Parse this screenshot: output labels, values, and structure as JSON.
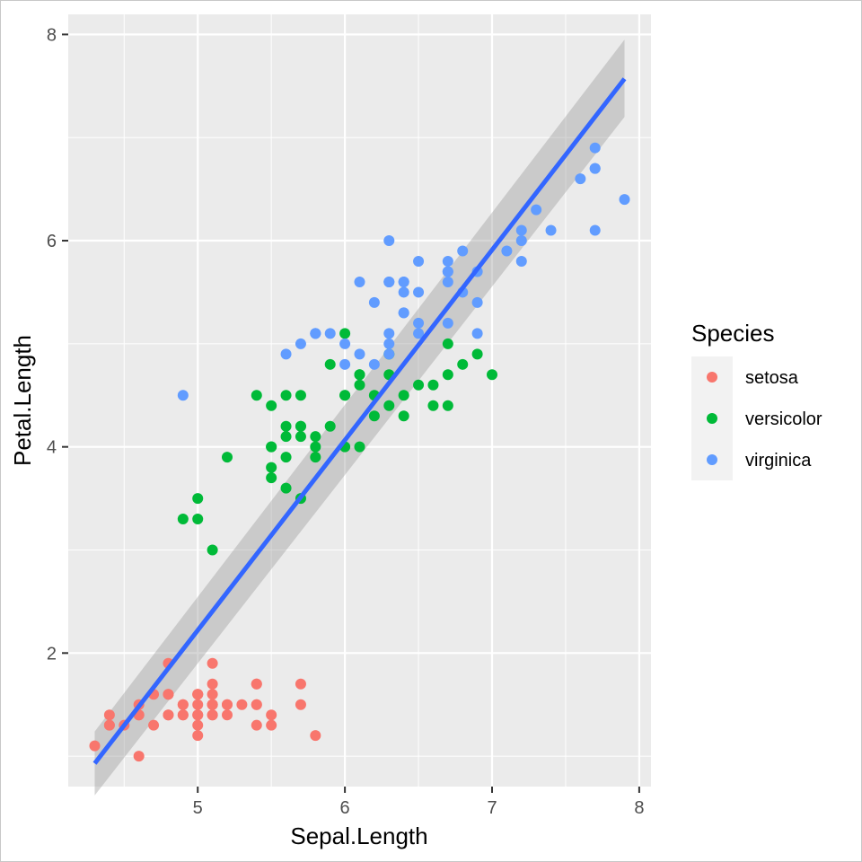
{
  "chart_data": {
    "type": "scatter",
    "xlabel": "Sepal.Length",
    "ylabel": "Petal.Length",
    "xlim": [
      4.12,
      8.08
    ],
    "ylim": [
      0.705,
      8.195
    ],
    "x_ticks": [
      5,
      6,
      7,
      8
    ],
    "y_ticks": [
      2,
      4,
      6,
      8
    ],
    "grid": true,
    "legend": {
      "title": "Species",
      "position": "right"
    },
    "series": [
      {
        "name": "setosa",
        "color": "#F8766D",
        "points": [
          [
            5.1,
            1.4
          ],
          [
            4.9,
            1.4
          ],
          [
            4.7,
            1.3
          ],
          [
            4.6,
            1.5
          ],
          [
            5.0,
            1.4
          ],
          [
            5.4,
            1.7
          ],
          [
            4.6,
            1.4
          ],
          [
            5.0,
            1.5
          ],
          [
            4.4,
            1.4
          ],
          [
            4.9,
            1.5
          ],
          [
            5.4,
            1.5
          ],
          [
            4.8,
            1.6
          ],
          [
            4.8,
            1.4
          ],
          [
            4.3,
            1.1
          ],
          [
            5.8,
            1.2
          ],
          [
            5.7,
            1.5
          ],
          [
            5.4,
            1.3
          ],
          [
            5.1,
            1.4
          ],
          [
            5.7,
            1.7
          ],
          [
            5.1,
            1.5
          ],
          [
            5.4,
            1.7
          ],
          [
            5.1,
            1.5
          ],
          [
            4.6,
            1.0
          ],
          [
            5.1,
            1.7
          ],
          [
            4.8,
            1.9
          ],
          [
            5.0,
            1.6
          ],
          [
            5.0,
            1.6
          ],
          [
            5.2,
            1.5
          ],
          [
            5.2,
            1.4
          ],
          [
            4.7,
            1.6
          ],
          [
            4.8,
            1.6
          ],
          [
            5.4,
            1.5
          ],
          [
            5.2,
            1.5
          ],
          [
            5.5,
            1.4
          ],
          [
            4.9,
            1.5
          ],
          [
            5.0,
            1.2
          ],
          [
            5.5,
            1.3
          ],
          [
            4.9,
            1.4
          ],
          [
            4.4,
            1.3
          ],
          [
            5.1,
            1.5
          ],
          [
            5.0,
            1.3
          ],
          [
            4.5,
            1.3
          ],
          [
            4.4,
            1.3
          ],
          [
            5.0,
            1.6
          ],
          [
            5.1,
            1.9
          ],
          [
            4.8,
            1.4
          ],
          [
            5.1,
            1.6
          ],
          [
            4.6,
            1.4
          ],
          [
            5.3,
            1.5
          ],
          [
            5.0,
            1.4
          ]
        ]
      },
      {
        "name": "versicolor",
        "color": "#00BA38",
        "points": [
          [
            7.0,
            4.7
          ],
          [
            6.4,
            4.5
          ],
          [
            6.9,
            4.9
          ],
          [
            5.5,
            4.0
          ],
          [
            6.5,
            4.6
          ],
          [
            5.7,
            4.5
          ],
          [
            6.3,
            4.7
          ],
          [
            4.9,
            3.3
          ],
          [
            6.6,
            4.6
          ],
          [
            5.2,
            3.9
          ],
          [
            5.0,
            3.5
          ],
          [
            5.9,
            4.2
          ],
          [
            6.0,
            4.0
          ],
          [
            6.1,
            4.7
          ],
          [
            5.6,
            3.6
          ],
          [
            6.7,
            4.4
          ],
          [
            5.6,
            4.5
          ],
          [
            5.8,
            4.1
          ],
          [
            6.2,
            4.5
          ],
          [
            5.6,
            3.9
          ],
          [
            5.9,
            4.8
          ],
          [
            6.1,
            4.0
          ],
          [
            6.3,
            4.9
          ],
          [
            6.1,
            4.7
          ],
          [
            6.4,
            4.3
          ],
          [
            6.6,
            4.4
          ],
          [
            6.8,
            4.8
          ],
          [
            6.7,
            5.0
          ],
          [
            6.0,
            4.5
          ],
          [
            5.7,
            3.5
          ],
          [
            5.5,
            3.8
          ],
          [
            5.5,
            3.7
          ],
          [
            5.8,
            3.9
          ],
          [
            6.0,
            5.1
          ],
          [
            5.4,
            4.5
          ],
          [
            6.0,
            4.5
          ],
          [
            6.7,
            4.7
          ],
          [
            6.3,
            4.4
          ],
          [
            5.6,
            4.1
          ],
          [
            5.5,
            4.0
          ],
          [
            5.5,
            4.4
          ],
          [
            6.1,
            4.6
          ],
          [
            5.8,
            4.0
          ],
          [
            5.0,
            3.3
          ],
          [
            5.6,
            4.2
          ],
          [
            5.7,
            4.2
          ],
          [
            5.7,
            4.2
          ],
          [
            6.2,
            4.3
          ],
          [
            5.1,
            3.0
          ],
          [
            5.7,
            4.1
          ]
        ]
      },
      {
        "name": "virginica",
        "color": "#619CFF",
        "points": [
          [
            6.3,
            6.0
          ],
          [
            5.8,
            5.1
          ],
          [
            7.1,
            5.9
          ],
          [
            6.3,
            5.6
          ],
          [
            6.5,
            5.8
          ],
          [
            7.6,
            6.6
          ],
          [
            4.9,
            4.5
          ],
          [
            7.3,
            6.3
          ],
          [
            6.7,
            5.8
          ],
          [
            7.2,
            6.1
          ],
          [
            6.5,
            5.1
          ],
          [
            6.4,
            5.3
          ],
          [
            6.8,
            5.5
          ],
          [
            5.7,
            5.0
          ],
          [
            5.8,
            5.1
          ],
          [
            6.4,
            5.3
          ],
          [
            6.5,
            5.5
          ],
          [
            7.7,
            6.7
          ],
          [
            7.7,
            6.9
          ],
          [
            6.0,
            5.0
          ],
          [
            6.9,
            5.7
          ],
          [
            5.6,
            4.9
          ],
          [
            7.7,
            6.7
          ],
          [
            6.3,
            4.9
          ],
          [
            6.7,
            5.7
          ],
          [
            7.2,
            6.0
          ],
          [
            6.2,
            4.8
          ],
          [
            6.1,
            4.9
          ],
          [
            6.4,
            5.6
          ],
          [
            7.2,
            5.8
          ],
          [
            7.4,
            6.1
          ],
          [
            7.9,
            6.4
          ],
          [
            6.4,
            5.6
          ],
          [
            6.3,
            5.1
          ],
          [
            6.1,
            5.6
          ],
          [
            7.7,
            6.1
          ],
          [
            6.3,
            5.6
          ],
          [
            6.4,
            5.5
          ],
          [
            6.0,
            4.8
          ],
          [
            6.9,
            5.4
          ],
          [
            6.7,
            5.6
          ],
          [
            6.9,
            5.1
          ],
          [
            5.8,
            5.1
          ],
          [
            6.8,
            5.9
          ],
          [
            6.7,
            5.7
          ],
          [
            6.7,
            5.2
          ],
          [
            6.3,
            5.0
          ],
          [
            6.5,
            5.2
          ],
          [
            6.2,
            5.4
          ],
          [
            5.9,
            5.1
          ]
        ]
      }
    ],
    "smooth": {
      "method": "lm",
      "color": "#3366FF",
      "band_color": "#999999",
      "x_range": [
        4.3,
        7.9
      ],
      "fit": [
        0.93,
        7.57
      ],
      "band": [
        [
          0.62,
          1.24
        ],
        [
          7.2,
          7.95
        ]
      ]
    }
  }
}
